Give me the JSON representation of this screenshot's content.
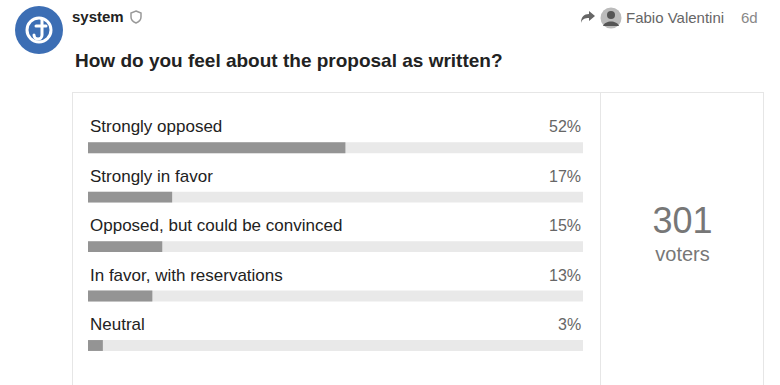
{
  "post": {
    "author": "system",
    "reply_to": "Fabio Valentini",
    "age": "6d"
  },
  "chart_data": {
    "type": "bar",
    "orientation": "horizontal",
    "title": "How do you feel about the proposal as written?",
    "categories": [
      "Strongly opposed",
      "Strongly in favor",
      "Opposed, but could be convinced",
      "In favor, with reservations",
      "Neutral"
    ],
    "values": [
      52,
      17,
      15,
      13,
      3
    ],
    "value_labels": [
      "52%",
      "17%",
      "15%",
      "13%",
      "3%"
    ],
    "data_labels": true,
    "color": "#949494",
    "xlim": [
      0,
      100
    ],
    "grid": false,
    "tick_labels": false,
    "total": 301,
    "total_label": "voters"
  }
}
